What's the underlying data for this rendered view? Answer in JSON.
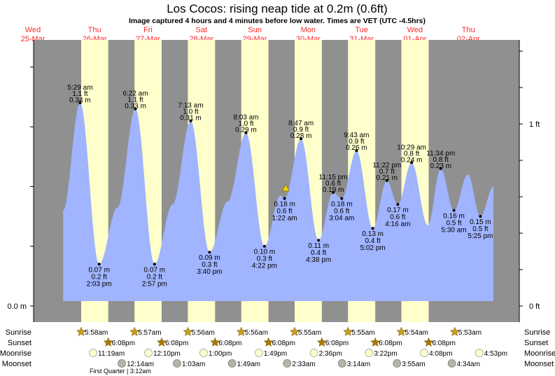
{
  "chart_data": {
    "type": "area",
    "title": "Los Cocos: rising  neap tide at 0.2m (0.6ft)",
    "subtitle": "Image captured 4 hours and 4 minutes before low water. Times are VET (UTC -4.5hrs)",
    "days": [
      {
        "dow": "Wed",
        "date": "25-Mar"
      },
      {
        "dow": "Thu",
        "date": "26-Mar"
      },
      {
        "dow": "Fri",
        "date": "27-Mar"
      },
      {
        "dow": "Sat",
        "date": "28-Mar"
      },
      {
        "dow": "Sun",
        "date": "29-Mar"
      },
      {
        "dow": "Mon",
        "date": "30-Mar"
      },
      {
        "dow": "Tue",
        "date": "31-Mar"
      },
      {
        "dow": "Wed",
        "date": "01-Apr"
      },
      {
        "dow": "Thu",
        "date": "02-Apr"
      }
    ],
    "y_left_label": "0.0 m",
    "y_right_labels": [
      "0 ft",
      "1 ft"
    ],
    "ylim_m": [
      0,
      0.45
    ],
    "current_marker": {
      "day_offset": 4.08,
      "height_m": 0.195
    },
    "extremes": [
      {
        "d": -0.09,
        "m": 0.16,
        "hidden": true
      },
      {
        "d": 0.229,
        "type": "high",
        "time": "5:29 am",
        "ft": "1.1 ft",
        "m": 0.34
      },
      {
        "d": 0.585,
        "type": "low",
        "time": "2:03 pm",
        "ft": "0.2 ft",
        "m": 0.07
      },
      {
        "d": 0.93,
        "m": 0.165,
        "hidden": true
      },
      {
        "d": 1.265,
        "type": "high",
        "time": "6:22 am",
        "ft": "1.1 ft",
        "m": 0.33
      },
      {
        "d": 1.623,
        "type": "low",
        "time": "2:57 pm",
        "ft": "0.2 ft",
        "m": 0.07
      },
      {
        "d": 1.96,
        "m": 0.17,
        "hidden": true
      },
      {
        "d": 2.3,
        "type": "high",
        "time": "7:13 am",
        "ft": "1.0 ft",
        "m": 0.31
      },
      {
        "d": 2.653,
        "type": "low",
        "time": "3:40 pm",
        "ft": "0.3 ft",
        "m": 0.09
      },
      {
        "d": 2.99,
        "m": 0.175,
        "hidden": true
      },
      {
        "d": 3.335,
        "type": "high",
        "time": "8:03 am",
        "ft": "1.0 ft",
        "m": 0.29
      },
      {
        "d": 3.682,
        "type": "low",
        "time": "4:22 pm",
        "ft": "0.3 ft",
        "m": 0.1
      },
      {
        "d": 3.98,
        "m": 0.185,
        "hidden": true
      },
      {
        "d": 4.057,
        "type": "low",
        "time": "1:22 am",
        "ft": "0.6 ft",
        "m": 0.18
      },
      {
        "d": 4.366,
        "type": "high",
        "time": "8:47 am",
        "ft": "0.9 ft",
        "m": 0.28
      },
      {
        "d": 4.694,
        "type": "low",
        "time": "4:38 pm",
        "ft": "0.4 ft",
        "m": 0.11
      },
      {
        "d": 4.969,
        "type": "high",
        "time": "11:15 pm",
        "ft": "0.6 ft",
        "m": 0.19
      },
      {
        "d": 5.128,
        "type": "low",
        "time": "3:04 am",
        "ft": "0.6 ft",
        "m": 0.18
      },
      {
        "d": 5.405,
        "type": "high",
        "time": "9:43 am",
        "ft": "0.9 ft",
        "m": 0.26
      },
      {
        "d": 5.71,
        "type": "low",
        "time": "5:02 pm",
        "ft": "0.4 ft",
        "m": 0.13
      },
      {
        "d": 5.974,
        "type": "high",
        "time": "11:22 pm",
        "ft": "0.7 ft",
        "m": 0.21
      },
      {
        "d": 6.178,
        "type": "low",
        "time": "4:16 am",
        "ft": "0.6 ft",
        "m": 0.17
      },
      {
        "d": 6.437,
        "type": "high",
        "time": "10:29 am",
        "ft": "0.8 ft",
        "m": 0.24
      },
      {
        "d": 6.74,
        "m": 0.135,
        "hidden": true
      },
      {
        "d": 6.982,
        "type": "high",
        "time": "11:34 pm",
        "ft": "0.8 ft",
        "m": 0.23
      },
      {
        "d": 7.229,
        "type": "low",
        "time": "5:30 am",
        "ft": "0.5 ft",
        "m": 0.16
      },
      {
        "d": 7.49,
        "m": 0.22,
        "hidden": true
      },
      {
        "d": 7.725,
        "type": "low",
        "time": "5:25 pm",
        "ft": "0.5 ft",
        "m": 0.15
      },
      {
        "d": 7.97,
        "m": 0.2,
        "hidden": true
      }
    ],
    "rows": {
      "labels": [
        "Sunrise",
        "Sunset",
        "Moonrise",
        "Moonset"
      ],
      "sunrise": [
        {
          "d": 0.249,
          "t": "5:58am"
        },
        {
          "d": 1.248,
          "t": "5:57am"
        },
        {
          "d": 2.247,
          "t": "5:56am"
        },
        {
          "d": 3.247,
          "t": "5:56am"
        },
        {
          "d": 4.246,
          "t": "5:55am"
        },
        {
          "d": 5.246,
          "t": "5:55am"
        },
        {
          "d": 6.245,
          "t": "5:54am"
        },
        {
          "d": 7.245,
          "t": "5:53am"
        }
      ],
      "sunset": [
        {
          "d": 0.756,
          "t": "6:08pm"
        },
        {
          "d": 1.756,
          "t": "6:08pm"
        },
        {
          "d": 2.756,
          "t": "6:08pm"
        },
        {
          "d": 3.756,
          "t": "6:08pm"
        },
        {
          "d": 4.756,
          "t": "6:08pm"
        },
        {
          "d": 5.756,
          "t": "6:08pm"
        },
        {
          "d": 6.756,
          "t": "6:08pm"
        }
      ],
      "moonrise": [
        {
          "d": 0.472,
          "t": "11:19am"
        },
        {
          "d": 1.507,
          "t": "12:10pm"
        },
        {
          "d": 2.542,
          "t": "1:00pm"
        },
        {
          "d": 3.576,
          "t": "1:49pm"
        },
        {
          "d": 4.608,
          "t": "2:36pm"
        },
        {
          "d": 5.64,
          "t": "3:22pm"
        },
        {
          "d": 6.672,
          "t": "4:08pm"
        },
        {
          "d": 7.703,
          "t": "4:53pm"
        }
      ],
      "moonset": [
        {
          "d": 1.01,
          "t": "12:14am"
        },
        {
          "d": 2.044,
          "t": "1:03am"
        },
        {
          "d": 3.075,
          "t": "1:49am"
        },
        {
          "d": 4.106,
          "t": "2:33am"
        },
        {
          "d": 5.135,
          "t": "3:14am"
        },
        {
          "d": 6.163,
          "t": "3:55am"
        },
        {
          "d": 7.19,
          "t": "4:34am"
        }
      ],
      "moon_phase": "First Quarter | 3:12am"
    }
  },
  "colors": {
    "night": "#909090",
    "day": "#ffffcc",
    "water": "#a0b4ff",
    "daylabel": "#ff2a2a",
    "sun": "#c8a020",
    "sunset": "#b07800",
    "moonrise": "#ffffcc",
    "moonset": "#b4b4a8"
  }
}
